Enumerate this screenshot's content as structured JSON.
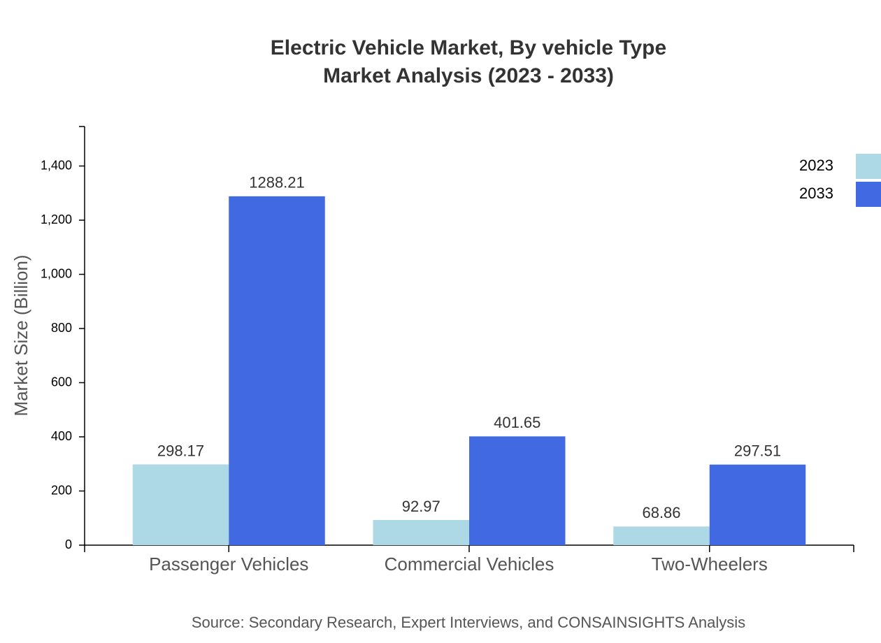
{
  "chart_data": {
    "type": "bar",
    "title": [
      "Electric Vehicle Market, By vehicle Type",
      "Market Analysis (2023 - 2033)"
    ],
    "y_label": "Market Size (Billion)",
    "source": "Source: Secondary Research, Expert Interviews, and CONSAINSIGHTS Analysis",
    "categories": [
      "Passenger Vehicles",
      "Commercial Vehicles",
      "Two-Wheelers"
    ],
    "series": [
      {
        "name": "2023",
        "color": "#add8e6",
        "values": [
          298.17,
          92.97,
          68.86
        ]
      },
      {
        "name": "2033",
        "color": "#4169e1",
        "values": [
          1288.21,
          401.65,
          297.51
        ]
      }
    ],
    "ylim": [
      0,
      1545.85
    ],
    "yticks": [
      0,
      200,
      400,
      600,
      800,
      {
        "value": 1000,
        "label": "1,000"
      },
      {
        "value": 1200,
        "label": "1,200"
      },
      {
        "value": 1400,
        "label": "1,400"
      }
    ],
    "legend": "top-right"
  }
}
